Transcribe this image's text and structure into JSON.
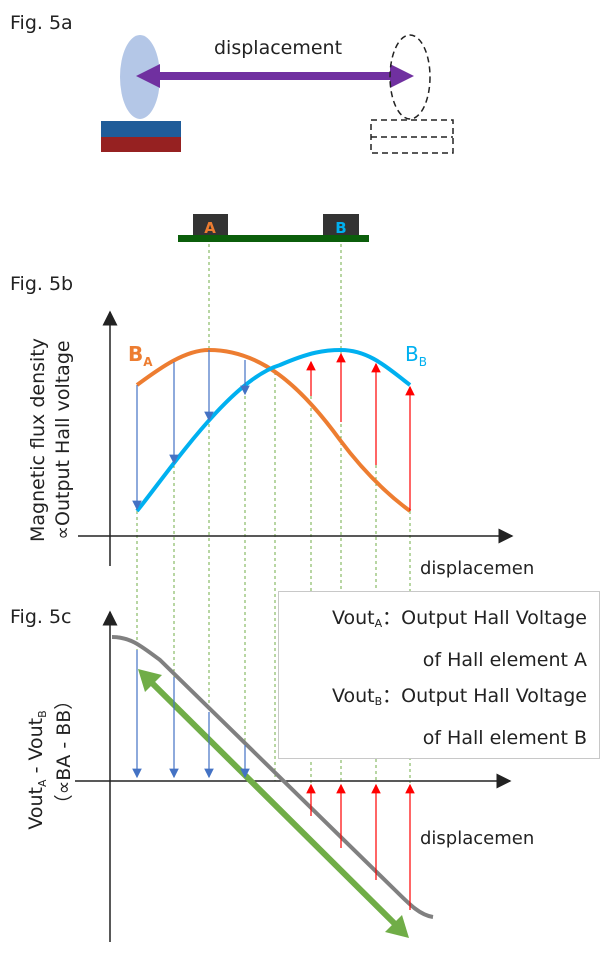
{
  "fig5a": {
    "label": "Fig. 5a",
    "arrow_label": "displacement"
  },
  "sensor": {
    "a_label": "A",
    "b_label": "B"
  },
  "fig5b": {
    "label": "Fig. 5b",
    "ylabel_line1": "Magnetic flux density",
    "ylabel_line2": "∝Output Hall voltage",
    "xlabel": "displacemen",
    "series_a": {
      "name": "B",
      "sub": "A",
      "color": "#ed7d31"
    },
    "series_b": {
      "name": "B",
      "sub": "B",
      "color": "#00b0f0"
    }
  },
  "fig5c": {
    "label": "Fig. 5c",
    "ylabel_line1_main": "Vout",
    "ylabel_line1_sub_a": "A",
    "ylabel_line1_mid": " - Vout",
    "ylabel_line1_sub_b": "B",
    "ylabel_line2": "（∝BA - BB）",
    "xlabel": "displacemen"
  },
  "legend": [
    {
      "name": "Vout",
      "sub": "A",
      "sep": "：",
      "line1": "Output  Hall Voltage",
      "line2": "of Hall element A"
    },
    {
      "name": "Vout",
      "sub": "B",
      "sep": "：",
      "line1": "Output  Hall Voltage",
      "line2": "of Hall element B"
    }
  ],
  "colors": {
    "arrow_purple": "#7030a0",
    "magnet_blue": "#1f5c99",
    "magnet_red": "#962121",
    "ellipse": "#b4c7e7",
    "pcb_green": "#0b5e0b",
    "down_arrow": "#4472c4",
    "up_arrow": "#ff0000",
    "diff_curve": "#808080",
    "green_arrow": "#70ad47"
  }
}
